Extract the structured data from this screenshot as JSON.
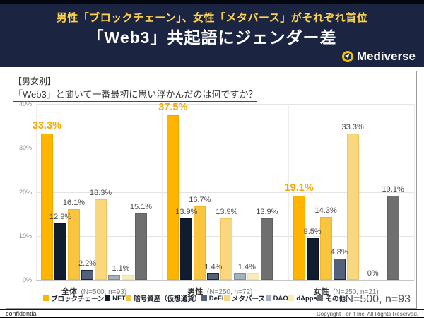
{
  "header": {
    "subtitle": "男性「ブロックチェーン」、女性「メタバース」がそれぞれ首位",
    "title": "「Web3」共起語にジェンダー差",
    "brand": "Mediverse",
    "accent_color": "#ffd34f",
    "bg_color": "#1b2441"
  },
  "chart_header": {
    "tag": "【男女別】",
    "question": "「Web3」と聞いて一番最初に思い浮かんだのは何ですか？"
  },
  "chart_data": {
    "type": "bar",
    "title": "「Web3」と聞いて一番最初に思い浮かんだのは何ですか？（男女別）",
    "ylim": [
      0,
      40
    ],
    "yticks": [
      "40%",
      "30%",
      "20%",
      "10%",
      "0%"
    ],
    "grid": true,
    "legend_position": "bottom",
    "categories": [
      "ブロックチェーン",
      "NFT",
      "暗号資産（仮想通貨）",
      "DeFi",
      "メタバース",
      "DAO",
      "dApps",
      "その他"
    ],
    "colors": [
      "#FFB400",
      "#101C30",
      "#F9C43E",
      "#53617A",
      "#F8D77E",
      "#A6B0BF",
      "#FAECB9",
      "#6F6F6F"
    ],
    "bar_borders": [
      "#F0A800",
      "#0A1626",
      "#EDB52E",
      "#1A2842",
      "#EFC45E",
      "#7C8B9E",
      "#EFDFA0",
      "#606060"
    ],
    "highlight_label_color": "#F5A800",
    "groups": [
      {
        "label": "全体",
        "n_label": "(N=500, n=93)",
        "values": [
          33.3,
          12.9,
          16.1,
          2.2,
          18.3,
          1.1,
          1.1,
          15.1
        ],
        "value_labels": [
          {
            "text": "33.3%",
            "bar": 0,
            "highlight": true
          },
          {
            "text": "12.9%",
            "bar": 1
          },
          {
            "text": "16.1%",
            "bar": 2
          },
          {
            "text": "2.2%",
            "bar": 3
          },
          {
            "text": "18.3%",
            "bar": 4
          },
          {
            "text": "1.1%",
            "bar": 5.5
          },
          {
            "text": "15.1%",
            "bar": 7
          }
        ]
      },
      {
        "label": "男性",
        "n_label": "(N=250, n=72)",
        "values": [
          37.5,
          13.9,
          16.7,
          1.4,
          13.9,
          1.4,
          1.4,
          13.9
        ],
        "value_labels": [
          {
            "text": "37.5%",
            "bar": 0,
            "highlight": true
          },
          {
            "text": "13.9%",
            "bar": 1
          },
          {
            "text": "16.7%",
            "bar": 2
          },
          {
            "text": "1.4%",
            "bar": 3
          },
          {
            "text": "13.9%",
            "bar": 4
          },
          {
            "text": "1.4%",
            "bar": 5.5
          },
          {
            "text": "13.9%",
            "bar": 7
          }
        ]
      },
      {
        "label": "女性",
        "n_label": "(N=250, n=21)",
        "values": [
          19.1,
          9.5,
          14.3,
          4.8,
          33.3,
          0,
          0,
          19.1
        ],
        "value_labels": [
          {
            "text": "19.1%",
            "bar": 0,
            "highlight": true
          },
          {
            "text": "9.5%",
            "bar": 1
          },
          {
            "text": "14.3%",
            "bar": 2
          },
          {
            "text": "4.8%",
            "bar": 3
          },
          {
            "text": "33.3%",
            "bar": 4
          },
          {
            "text": "0%",
            "bar": 5.5
          },
          {
            "text": "19.1%",
            "bar": 7
          }
        ]
      }
    ],
    "note": "N=500, n=93"
  },
  "footer": {
    "left": "confidential",
    "right": "Copyright For it Inc. All Rights Reserved."
  }
}
